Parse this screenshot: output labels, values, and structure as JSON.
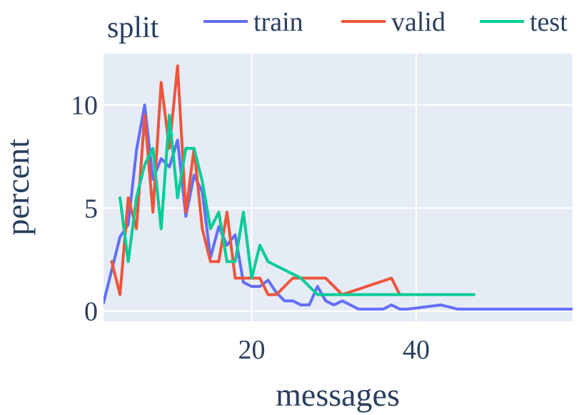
{
  "chart_data": {
    "type": "line",
    "xlabel": "messages",
    "ylabel": "percent",
    "legend_title": "split",
    "legend_position": "top",
    "xlim": [
      2,
      59
    ],
    "ylim": [
      -0.5,
      12.5
    ],
    "x_ticks": [
      20,
      40
    ],
    "y_ticks": [
      0,
      5,
      10
    ],
    "grid": true,
    "plot_bg": "#e5ecf6",
    "series": [
      {
        "name": "train",
        "color": "#636efa",
        "x": [
          2,
          3,
          4,
          5,
          6,
          7,
          8,
          9,
          10,
          11,
          12,
          13,
          14,
          15,
          16,
          17,
          18,
          19,
          20,
          21,
          22,
          23,
          24,
          25,
          26,
          27,
          28,
          29,
          30,
          31,
          32,
          33,
          34,
          35,
          36,
          37,
          38,
          39,
          40,
          41,
          42,
          43,
          44,
          45,
          46,
          47,
          48,
          49,
          50,
          51,
          52,
          53,
          54,
          55,
          56,
          57,
          58,
          59
        ],
        "values": [
          0.4,
          2.0,
          3.6,
          4.2,
          7.8,
          10.0,
          6.4,
          7.4,
          7.0,
          8.3,
          4.6,
          6.6,
          5.8,
          2.6,
          4.1,
          3.2,
          3.7,
          1.4,
          1.2,
          1.2,
          1.5,
          0.9,
          0.5,
          0.5,
          0.3,
          0.3,
          1.2,
          0.5,
          0.3,
          0.5,
          0.3,
          0.1,
          0.1,
          0.1,
          0.1,
          0.3,
          0.1,
          0.1,
          0.15,
          0.2,
          0.25,
          0.3,
          0.2,
          0.1,
          0.1,
          0.1,
          0.1,
          0.1,
          0.1,
          0.1,
          0.1,
          0.1,
          0.1,
          0.1,
          0.1,
          0.1,
          0.1,
          0.1
        ]
      },
      {
        "name": "valid",
        "color": "#ef553b",
        "x": [
          3,
          4,
          5,
          6,
          7,
          8,
          9,
          10,
          11,
          12,
          13,
          14,
          15,
          16,
          17,
          18,
          19,
          20,
          21,
          22,
          23,
          25,
          29,
          31,
          37,
          38
        ],
        "values": [
          2.4,
          0.8,
          5.5,
          4.0,
          9.5,
          4.8,
          11.1,
          7.9,
          11.9,
          4.8,
          7.9,
          4.0,
          2.4,
          2.4,
          4.8,
          1.6,
          1.6,
          1.6,
          1.6,
          0.8,
          0.8,
          1.6,
          1.6,
          0.8,
          1.6,
          0.8
        ]
      },
      {
        "name": "test",
        "color": "#00cc96",
        "x": [
          4,
          5,
          6,
          7,
          8,
          9,
          10,
          11,
          12,
          13,
          14,
          15,
          16,
          17,
          18,
          19,
          20,
          21,
          22,
          26,
          28,
          29,
          31,
          35,
          38,
          41,
          43,
          47
        ],
        "values": [
          5.5,
          2.4,
          5.5,
          7.1,
          7.9,
          4.0,
          9.5,
          5.5,
          7.9,
          7.9,
          6.3,
          4.0,
          4.8,
          2.4,
          2.4,
          4.8,
          1.6,
          3.2,
          2.4,
          1.6,
          0.8,
          0.8,
          0.8,
          0.8,
          0.8,
          0.8,
          0.8,
          0.8
        ]
      }
    ]
  }
}
